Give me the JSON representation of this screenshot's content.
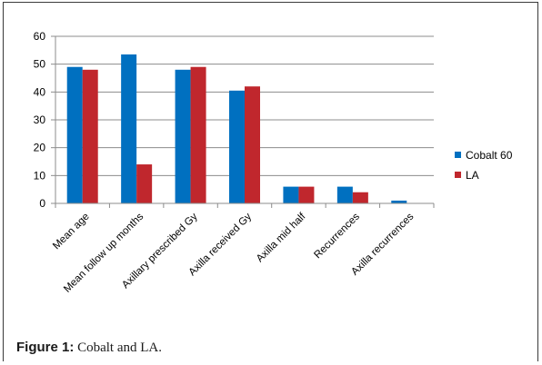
{
  "chart_data": {
    "type": "bar",
    "categories": [
      "Mean age",
      "Mean follow up months",
      "Axillary  prescribed Gy",
      "Axilla received  Gy",
      "Axilla mid half",
      "Recurrences",
      "Axilla recurrences"
    ],
    "series": [
      {
        "name": "Cobalt 60",
        "color": "#0070c0",
        "values": [
          49,
          53.5,
          48,
          40.5,
          6,
          6,
          1
        ]
      },
      {
        "name": "LA",
        "color": "#c0272d",
        "values": [
          48,
          14,
          49,
          42,
          6,
          4,
          0
        ]
      }
    ],
    "yticks": [
      0,
      10,
      20,
      30,
      40,
      50,
      60
    ],
    "ylim": [
      0,
      60
    ],
    "grid": true,
    "legend": "right"
  },
  "caption": {
    "label": "Figure 1:",
    "text": " Cobalt and LA."
  }
}
